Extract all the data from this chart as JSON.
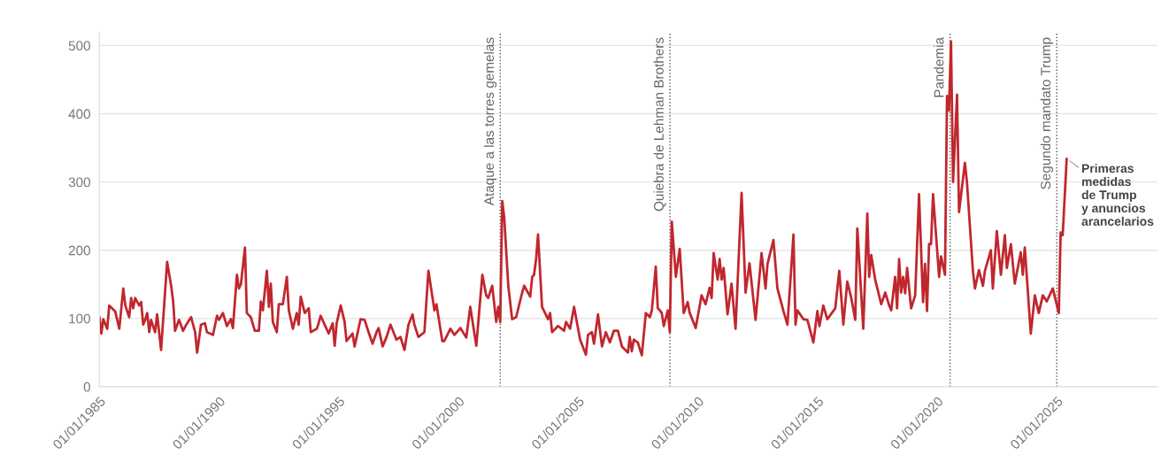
{
  "chart_data": {
    "type": "line",
    "x": [
      "1985-01",
      "1985-02",
      "1985-03",
      "1985-05",
      "1985-06",
      "1985-09",
      "1985-11",
      "1986-01",
      "1986-02",
      "1986-04",
      "1986-05",
      "1986-06",
      "1986-07",
      "1986-09",
      "1986-10",
      "1986-11",
      "1986-12",
      "1987-01",
      "1987-02",
      "1987-03",
      "1987-05",
      "1987-06",
      "1987-08",
      "1987-11",
      "1988-01",
      "1988-02",
      "1988-03",
      "1988-05",
      "1988-07",
      "1988-09",
      "1988-11",
      "1989-01",
      "1989-02",
      "1989-04",
      "1989-06",
      "1989-07",
      "1989-10",
      "1989-12",
      "1990-01",
      "1990-03",
      "1990-05",
      "1990-07",
      "1990-08",
      "1990-10",
      "1990-11",
      "1990-12",
      "1991-02",
      "1991-03",
      "1991-05",
      "1991-07",
      "1991-09",
      "1991-10",
      "1991-11",
      "1992-01",
      "1992-02",
      "1992-03",
      "1992-04",
      "1992-06",
      "1992-07",
      "1992-09",
      "1992-11",
      "1992-12",
      "1993-02",
      "1993-04",
      "1993-05",
      "1993-06",
      "1993-08",
      "1993-10",
      "1993-11",
      "1994-02",
      "1994-03",
      "1994-04",
      "1994-06",
      "1994-08",
      "1994-10",
      "1994-11",
      "1994-12",
      "1995-02",
      "1995-04",
      "1995-05",
      "1995-08",
      "1995-09",
      "1995-12",
      "1996-02",
      "1996-04",
      "1996-06",
      "1996-08",
      "1996-09",
      "1996-11",
      "1997-01",
      "1997-03",
      "1997-06",
      "1997-08",
      "1997-10",
      "1997-12",
      "1998-02",
      "1998-03",
      "1998-05",
      "1998-08",
      "1998-10",
      "1999-01",
      "1999-02",
      "1999-05",
      "1999-06",
      "1999-09",
      "1999-11",
      "2000-02",
      "2000-05",
      "2000-07",
      "2000-10",
      "2001-01",
      "2001-03",
      "2001-04",
      "2001-06",
      "2001-08",
      "2001-09",
      "2001-10",
      "2001-11",
      "2001-12",
      "2002-02",
      "2002-04",
      "2002-06",
      "2002-09",
      "2002-10",
      "2003-01",
      "2003-02",
      "2003-03",
      "2003-04",
      "2003-05",
      "2003-07",
      "2003-10",
      "2003-11",
      "2003-12",
      "2004-03",
      "2004-06",
      "2004-07",
      "2004-09",
      "2004-11",
      "2005-02",
      "2005-05",
      "2005-06",
      "2005-08",
      "2005-09",
      "2005-11",
      "2006-01",
      "2006-03",
      "2006-05",
      "2006-07",
      "2006-09",
      "2006-11",
      "2007-02",
      "2007-03",
      "2007-04",
      "2007-05",
      "2007-07",
      "2007-09",
      "2007-11",
      "2008-01",
      "2008-02",
      "2008-04",
      "2008-05",
      "2008-06",
      "2008-07",
      "2008-08",
      "2008-10",
      "2008-11",
      "2008-12",
      "2009-02",
      "2009-04",
      "2009-06",
      "2009-08",
      "2009-09",
      "2009-12",
      "2010-03",
      "2010-05",
      "2010-07",
      "2010-08",
      "2010-09",
      "2010-11",
      "2010-12",
      "2011-01",
      "2011-02",
      "2011-04",
      "2011-06",
      "2011-08",
      "2011-11",
      "2012-01",
      "2012-03",
      "2012-06",
      "2012-09",
      "2012-11",
      "2012-12",
      "2013-03",
      "2013-05",
      "2013-08",
      "2013-10",
      "2014-01",
      "2014-02",
      "2014-03",
      "2014-06",
      "2014-08",
      "2014-11",
      "2015-01",
      "2015-02",
      "2015-04",
      "2015-06",
      "2015-10",
      "2015-12",
      "2016-02",
      "2016-04",
      "2016-06",
      "2016-08",
      "2016-09",
      "2016-12",
      "2017-02",
      "2017-03",
      "2017-04",
      "2017-06",
      "2017-09",
      "2017-11",
      "2018-01",
      "2018-02",
      "2018-04",
      "2018-05",
      "2018-06",
      "2018-07",
      "2018-08",
      "2018-09",
      "2018-10",
      "2018-12",
      "2019-02",
      "2019-04",
      "2019-06",
      "2019-07",
      "2019-08",
      "2019-09",
      "2019-10",
      "2019-11",
      "2020-02",
      "2020-03",
      "2020-05",
      "2020-06",
      "2020-07",
      "2020-08",
      "2020-09",
      "2020-11",
      "2020-12",
      "2021-03",
      "2021-04",
      "2021-07",
      "2021-08",
      "2021-10",
      "2021-12",
      "2022-01",
      "2022-04",
      "2022-05",
      "2022-07",
      "2022-09",
      "2022-11",
      "2022-12",
      "2023-02",
      "2023-04",
      "2023-07",
      "2023-08",
      "2023-09",
      "2023-12",
      "2024-02",
      "2024-04",
      "2024-06",
      "2024-08",
      "2024-11",
      "2025-02",
      "2025-03",
      "2025-04",
      "2025-06"
    ],
    "series": [
      {
        "color": "#c0272d",
        "values": [
          102,
          78,
          99,
          85,
          119,
          110,
          85,
          144,
          119,
          102,
          130,
          115,
          130,
          119,
          124,
          91,
          98,
          108,
          80,
          98,
          80,
          106,
          54,
          183,
          148,
          125,
          82,
          98,
          82,
          93,
          102,
          80,
          50,
          91,
          93,
          80,
          76,
          104,
          98,
          108,
          89,
          99,
          86,
          164,
          144,
          150,
          204,
          108,
          102,
          82,
          82,
          125,
          112,
          170,
          117,
          151,
          95,
          80,
          121,
          121,
          161,
          112,
          85,
          108,
          91,
          132,
          108,
          115,
          80,
          85,
          93,
          104,
          91,
          78,
          93,
          60,
          93,
          119,
          95,
          67,
          78,
          59,
          99,
          98,
          80,
          63,
          80,
          86,
          59,
          73,
          91,
          69,
          73,
          54,
          91,
          106,
          91,
          73,
          80,
          170,
          112,
          121,
          67,
          67,
          85,
          76,
          86,
          72,
          117,
          60,
          164,
          134,
          130,
          148,
          95,
          117,
          95,
          272,
          248,
          148,
          99,
          102,
          138,
          148,
          132,
          161,
          164,
          187,
          223,
          117,
          99,
          108,
          80,
          89,
          82,
          95,
          85,
          117,
          69,
          47,
          76,
          80,
          63,
          106,
          59,
          80,
          65,
          82,
          82,
          59,
          50,
          73,
          52,
          69,
          65,
          46,
          108,
          102,
          112,
          176,
          115,
          112,
          108,
          89,
          112,
          80,
          242,
          161,
          202,
          108,
          124,
          108,
          86,
          134,
          121,
          145,
          130,
          196,
          157,
          187,
          157,
          174,
          106,
          151,
          85,
          284,
          138,
          181,
          98,
          196,
          144,
          180,
          215,
          144,
          111,
          91,
          223,
          91,
          112,
          99,
          98,
          65,
          111,
          89,
          119,
          99,
          115,
          170,
          91,
          154,
          130,
          98,
          232,
          85,
          254,
          161,
          193,
          157,
          121,
          138,
          119,
          112,
          161,
          115,
          187,
          138,
          161,
          137,
          174,
          115,
          134,
          282,
          124,
          180,
          111,
          209,
          209,
          282,
          161,
          191,
          164,
          426,
          405,
          506,
          300,
          428,
          256,
          328,
          300,
          170,
          144,
          171,
          148,
          170,
          200,
          144,
          228,
          164,
          222,
          174,
          209,
          151,
          197,
          164,
          204,
          78,
          134,
          108,
          134,
          125,
          144,
          108,
          226,
          222,
          334
        ]
      }
    ],
    "xlim": [
      "1985-01-01",
      "2029-03-15"
    ],
    "xticks": [
      {
        "value": "1985-01-01",
        "label": "01/01/1985"
      },
      {
        "value": "1990-01-01",
        "label": "01/01/1990"
      },
      {
        "value": "1995-01-01",
        "label": "01/01/1995"
      },
      {
        "value": "2000-01-01",
        "label": "01/01/2000"
      },
      {
        "value": "2005-01-01",
        "label": "01/01/2005"
      },
      {
        "value": "2010-01-01",
        "label": "01/01/2010"
      },
      {
        "value": "2015-01-01",
        "label": "01/01/2015"
      },
      {
        "value": "2020-01-01",
        "label": "01/01/2020"
      },
      {
        "value": "2025-01-01",
        "label": "01/01/2025"
      }
    ],
    "ylim": [
      0,
      520
    ],
    "yticks": [
      0,
      100,
      200,
      300,
      400,
      500
    ],
    "grid": "y",
    "ref_lines": [
      {
        "axis": "x",
        "value": "2001-10-01",
        "label": "Ataque a las torres gemelas",
        "color": "#555555",
        "line_style": "dotted"
      },
      {
        "axis": "x",
        "value": "2008-11-03",
        "label": "Quiebra de Lehman Brothers",
        "color": "#555555",
        "line_style": "dotted"
      },
      {
        "axis": "x",
        "value": "2020-07-18",
        "label": "Pandemia",
        "color": "#555555",
        "line_style": "dotted"
      },
      {
        "axis": "x",
        "value": "2025-01-01",
        "label": "Segundo mandato Trump",
        "color": "#555555",
        "line_style": "dotted"
      }
    ],
    "annotations": [
      {
        "text": "Primeras\nmedidas\nde Trump\ny anuncios\narancelarios",
        "x": "2025-06",
        "y": 334
      }
    ]
  }
}
